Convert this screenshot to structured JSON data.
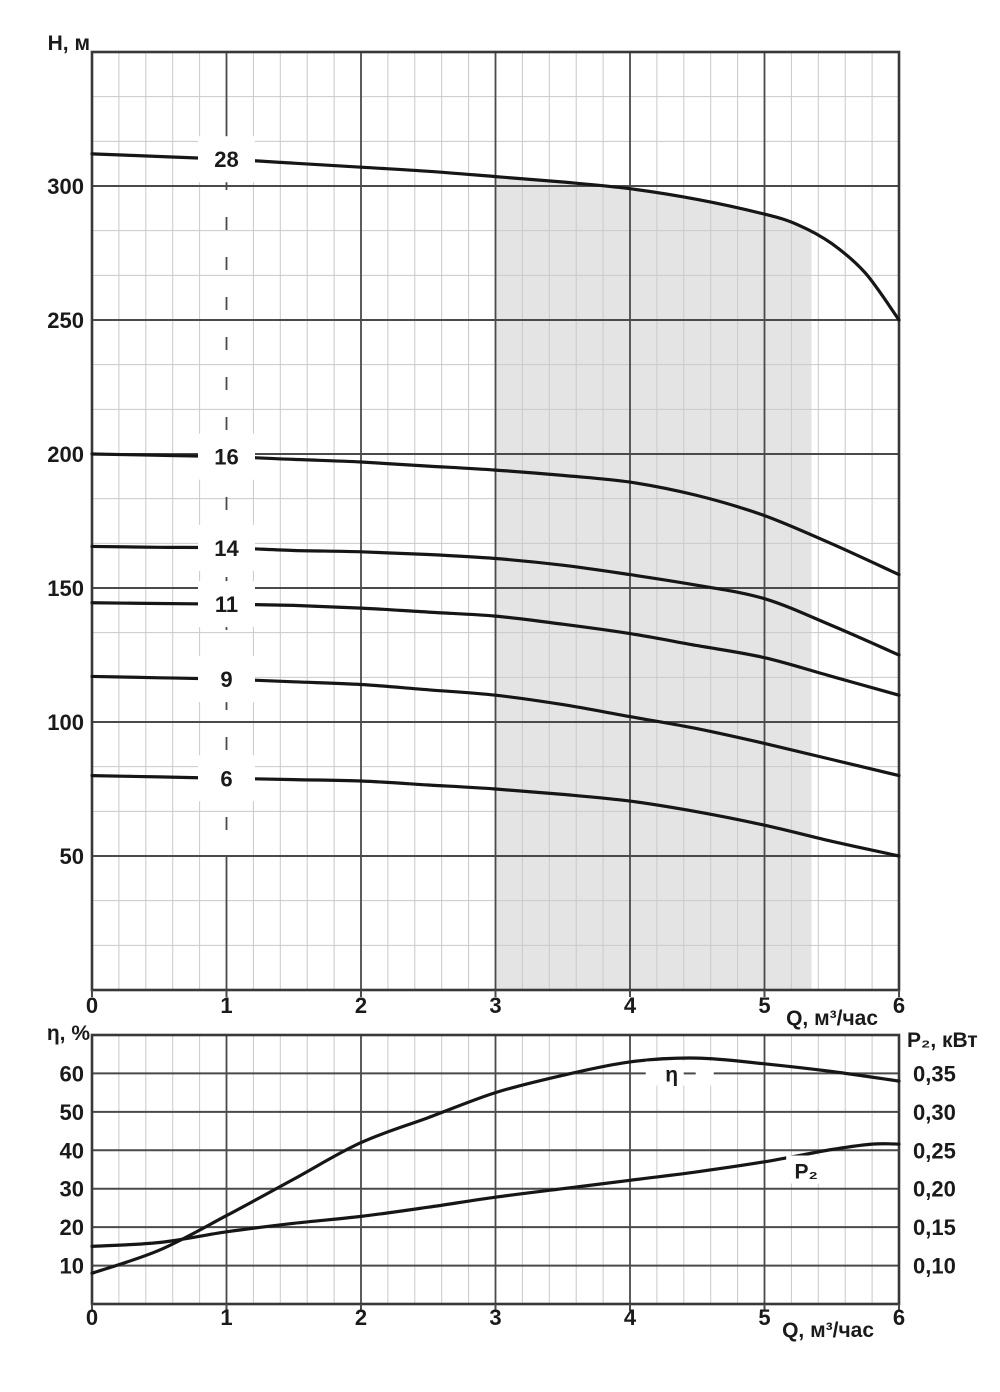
{
  "colors": {
    "background": "#ffffff",
    "curve": "#161616",
    "grid_major": "#4a4a4a",
    "grid_minor": "#c9c9c9",
    "border": "#383838",
    "zone_fill": "#e4e4e4",
    "text": "#1a1a1a",
    "label_box": "#ffffff"
  },
  "chart_data": [
    {
      "id": "head_chart",
      "type": "line",
      "title": "",
      "ylabel": "Н, м",
      "xlabel": "Q, м³/час",
      "xlim": [
        0,
        6
      ],
      "ylim": [
        0,
        350
      ],
      "x_ticks": [
        "0",
        "1",
        "2",
        "3",
        "4",
        "5",
        "6"
      ],
      "y_ticks": [
        50,
        100,
        150,
        200,
        250,
        300
      ],
      "x_minor_step": 0.2,
      "y_major_step": 50,
      "y_minor_divisions": 3,
      "grid": "major+minor",
      "legend_position": "labels-on-curves",
      "curve_label_q": 1,
      "operating_zone": {
        "q_from": 3,
        "q_to": 5.35
      },
      "series": [
        {
          "name": "28",
          "points": [
            [
              0,
              312
            ],
            [
              0.5,
              311
            ],
            [
              1,
              310
            ],
            [
              1.5,
              308.5
            ],
            [
              2,
              307
            ],
            [
              2.5,
              305.5
            ],
            [
              3,
              303.5
            ],
            [
              3.5,
              301.5
            ],
            [
              4,
              299
            ],
            [
              4.5,
              295
            ],
            [
              5,
              289.5
            ],
            [
              5.25,
              285.5
            ],
            [
              5.5,
              278.5
            ],
            [
              5.75,
              267.5
            ],
            [
              6,
              250
            ]
          ]
        },
        {
          "name": "16",
          "points": [
            [
              0,
              200
            ],
            [
              0.5,
              199.5
            ],
            [
              1,
              199
            ],
            [
              1.5,
              198
            ],
            [
              2,
              197
            ],
            [
              2.5,
              195.5
            ],
            [
              3,
              194
            ],
            [
              3.5,
              192
            ],
            [
              4,
              189.5
            ],
            [
              4.5,
              184.5
            ],
            [
              5,
              177
            ],
            [
              5.5,
              166.5
            ],
            [
              6,
              155
            ]
          ]
        },
        {
          "name": "14",
          "points": [
            [
              0,
              165.5
            ],
            [
              0.5,
              165.2
            ],
            [
              1,
              165
            ],
            [
              1.5,
              164
            ],
            [
              2,
              163.5
            ],
            [
              2.5,
              162.5
            ],
            [
              3,
              161
            ],
            [
              3.5,
              158.5
            ],
            [
              4,
              155
            ],
            [
              4.5,
              151
            ],
            [
              5,
              146
            ],
            [
              5.5,
              136
            ],
            [
              6,
              125
            ]
          ]
        },
        {
          "name": "11",
          "points": [
            [
              0,
              144.5
            ],
            [
              0.5,
              144.2
            ],
            [
              1,
              144
            ],
            [
              1.5,
              143.5
            ],
            [
              2,
              142.5
            ],
            [
              2.5,
              141
            ],
            [
              3,
              139.5
            ],
            [
              3.5,
              136.5
            ],
            [
              4,
              133
            ],
            [
              4.5,
              128.5
            ],
            [
              5,
              124
            ],
            [
              5.5,
              117
            ],
            [
              6,
              110
            ]
          ]
        },
        {
          "name": "9",
          "points": [
            [
              0,
              117
            ],
            [
              0.5,
              116.5
            ],
            [
              1,
              116
            ],
            [
              1.5,
              115
            ],
            [
              2,
              114
            ],
            [
              2.5,
              112
            ],
            [
              3,
              110
            ],
            [
              3.5,
              106.5
            ],
            [
              4,
              102
            ],
            [
              4.5,
              97.5
            ],
            [
              5,
              92
            ],
            [
              5.5,
              86
            ],
            [
              6,
              80
            ]
          ]
        },
        {
          "name": "6",
          "points": [
            [
              0,
              80
            ],
            [
              0.5,
              79.5
            ],
            [
              1,
              79
            ],
            [
              1.5,
              78.5
            ],
            [
              2,
              78
            ],
            [
              2.5,
              76.5
            ],
            [
              3,
              75
            ],
            [
              3.5,
              73
            ],
            [
              4,
              70.5
            ],
            [
              4.5,
              66.5
            ],
            [
              5,
              61.5
            ],
            [
              5.5,
              55.5
            ],
            [
              6,
              50
            ]
          ]
        }
      ]
    },
    {
      "id": "efficiency_power_chart",
      "type": "line",
      "title": "",
      "ylabel_left": "η, %",
      "ylabel_right": "P₂, кВт",
      "xlabel": "Q, м³/час",
      "xlim": [
        0,
        6
      ],
      "eta_lim": [
        0,
        70
      ],
      "p2_lim": [
        0.05,
        0.4
      ],
      "x_ticks": [
        "0",
        "1",
        "2",
        "3",
        "4",
        "5",
        "6"
      ],
      "left_ticks": [
        10,
        20,
        30,
        40,
        50,
        60
      ],
      "right_ticks": [
        "0,10",
        "0,15",
        "0,20",
        "0,25",
        "0,30",
        "0,35"
      ],
      "x_minor_step": 0.2,
      "grid": "major-horizontal+vertical-minor",
      "eta_series": {
        "name": "η",
        "label_pos": {
          "q": 4.31,
          "eta": 60
        },
        "points": [
          [
            0,
            8
          ],
          [
            0.5,
            14
          ],
          [
            1,
            23
          ],
          [
            1.5,
            32.5
          ],
          [
            2,
            42
          ],
          [
            2.5,
            48.5
          ],
          [
            3,
            55
          ],
          [
            3.5,
            59.5
          ],
          [
            4,
            63
          ],
          [
            4.5,
            64
          ],
          [
            5,
            62.5
          ],
          [
            5.5,
            60.5
          ],
          [
            6,
            58
          ]
        ]
      },
      "p2_series": {
        "name": "P₂",
        "label_pos": {
          "q": 5.31,
          "p2": 0.225
        },
        "points": [
          [
            0,
            0.125
          ],
          [
            0.5,
            0.13
          ],
          [
            1,
            0.144
          ],
          [
            1.5,
            0.155
          ],
          [
            2,
            0.164
          ],
          [
            2.5,
            0.176
          ],
          [
            3,
            0.189
          ],
          [
            3.5,
            0.2
          ],
          [
            4,
            0.211
          ],
          [
            4.5,
            0.222
          ],
          [
            5,
            0.235
          ],
          [
            5.5,
            0.251
          ],
          [
            5.8,
            0.258
          ],
          [
            6,
            0.258
          ]
        ]
      }
    }
  ]
}
